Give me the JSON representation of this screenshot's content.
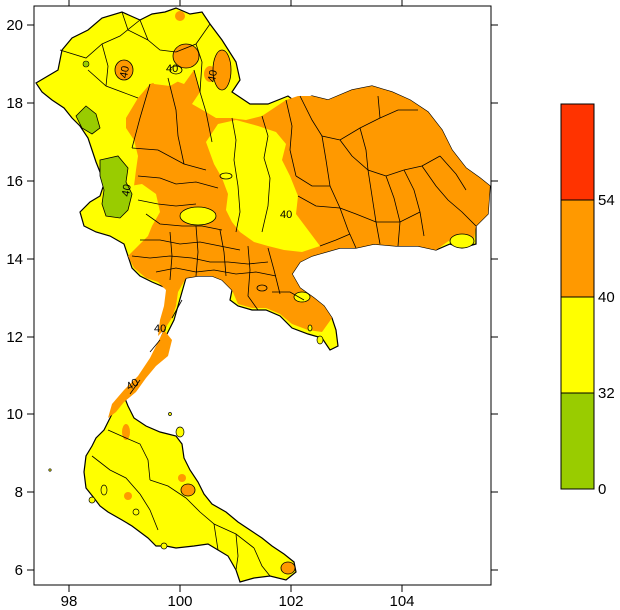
{
  "map": {
    "region": "Thailand",
    "lon_range": [
      97.35,
      105.7
    ],
    "lat_range": [
      5.65,
      20.5
    ],
    "x_ticks": [
      "98",
      "100",
      "102",
      "104"
    ],
    "y_ticks": [
      "20",
      "18",
      "16",
      "14",
      "12",
      "10",
      "8",
      "6"
    ],
    "contour_labels": [
      "40",
      "40",
      "40",
      "40",
      "40",
      "40",
      "40"
    ]
  },
  "legend": {
    "bins": [
      {
        "from": 0,
        "to": 32,
        "color": "#99cc00"
      },
      {
        "from": 32,
        "to": 40,
        "color": "#ffff00"
      },
      {
        "from": 40,
        "to": 54,
        "color": "#ff9900"
      },
      {
        "from": 54,
        "to": null,
        "color": "#ff3300"
      }
    ],
    "labels": [
      "54",
      "40",
      "32",
      "0"
    ]
  },
  "colors": {
    "green": "#99cc00",
    "yellow": "#ffff00",
    "orange": "#ff9900",
    "red": "#ff3300",
    "border": "#000000"
  }
}
